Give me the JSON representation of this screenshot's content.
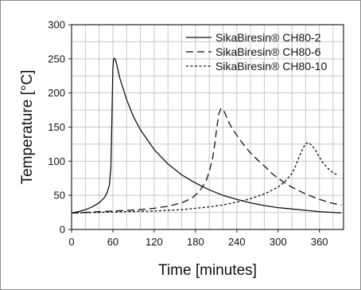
{
  "chart_data": {
    "type": "line",
    "title": "",
    "xlabel": "Time [minutes]",
    "ylabel": "Temperature [°C]",
    "xlim": [
      0,
      395
    ],
    "ylim": [
      0,
      300
    ],
    "xticks": [
      0,
      60,
      120,
      180,
      240,
      300,
      360
    ],
    "yticks": [
      0,
      50,
      100,
      150,
      200,
      250,
      300
    ],
    "grid": true,
    "legend_position": "top-right",
    "series": [
      {
        "name": "SikaBiresin® CH80-2",
        "style": "solid",
        "x": [
          0,
          10,
          20,
          30,
          40,
          48,
          52,
          55,
          57,
          58,
          59,
          60,
          61,
          62,
          63,
          64,
          66,
          70,
          80,
          90,
          100,
          120,
          140,
          160,
          180,
          200,
          220,
          240,
          260,
          280,
          300,
          320,
          340,
          360,
          380,
          392
        ],
        "values": [
          24,
          26,
          29,
          33,
          39,
          47,
          55,
          65,
          90,
          130,
          185,
          235,
          249,
          251,
          250,
          248,
          240,
          222,
          190,
          165,
          146,
          117,
          96,
          80,
          68,
          58,
          50,
          44,
          39,
          35,
          32,
          30,
          28,
          26,
          25,
          24
        ]
      },
      {
        "name": "SikaBiresin® CH80-6",
        "style": "dashed",
        "x": [
          0,
          20,
          40,
          60,
          80,
          100,
          120,
          140,
          160,
          175,
          185,
          195,
          200,
          205,
          208,
          211,
          214,
          217,
          220,
          223,
          226,
          232,
          240,
          250,
          260,
          270,
          280,
          290,
          300,
          310,
          320,
          330,
          340,
          350,
          360,
          370,
          380,
          392
        ],
        "values": [
          24,
          25,
          26,
          27,
          28,
          29,
          31,
          34,
          39,
          46,
          55,
          70,
          85,
          105,
          125,
          150,
          170,
          177,
          176,
          170,
          162,
          150,
          138,
          124,
          112,
          102,
          93,
          83,
          75,
          68,
          62,
          57,
          52,
          48,
          44,
          41,
          38,
          36
        ]
      },
      {
        "name": "SikaBiresin® CH80-10",
        "style": "dotted",
        "x": [
          0,
          40,
          80,
          120,
          160,
          200,
          220,
          240,
          260,
          280,
          300,
          310,
          320,
          325,
          330,
          335,
          340,
          345,
          350,
          355,
          360,
          365,
          370,
          375,
          380,
          386
        ],
        "values": [
          24,
          25,
          26,
          27,
          29,
          33,
          36,
          40,
          45,
          52,
          62,
          70,
          82,
          92,
          105,
          117,
          126,
          127,
          122,
          115,
          106,
          98,
          92,
          87,
          83,
          80
        ]
      }
    ]
  }
}
